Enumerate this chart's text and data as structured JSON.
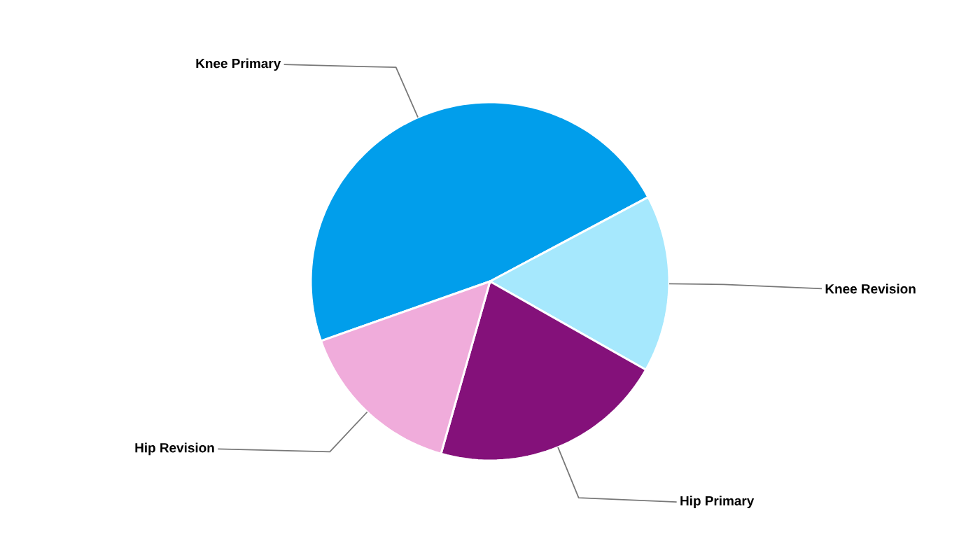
{
  "chart_data": {
    "type": "pie",
    "categories": [
      "Knee Primary",
      "Knee Revision",
      "Hip Primary",
      "Hip Revision"
    ],
    "values": [
      47.6,
      16.0,
      21.2,
      15.2
    ],
    "colors": [
      "#019eeb",
      "#a6e8fd",
      "#84117a",
      "#f0acdb"
    ]
  }
}
